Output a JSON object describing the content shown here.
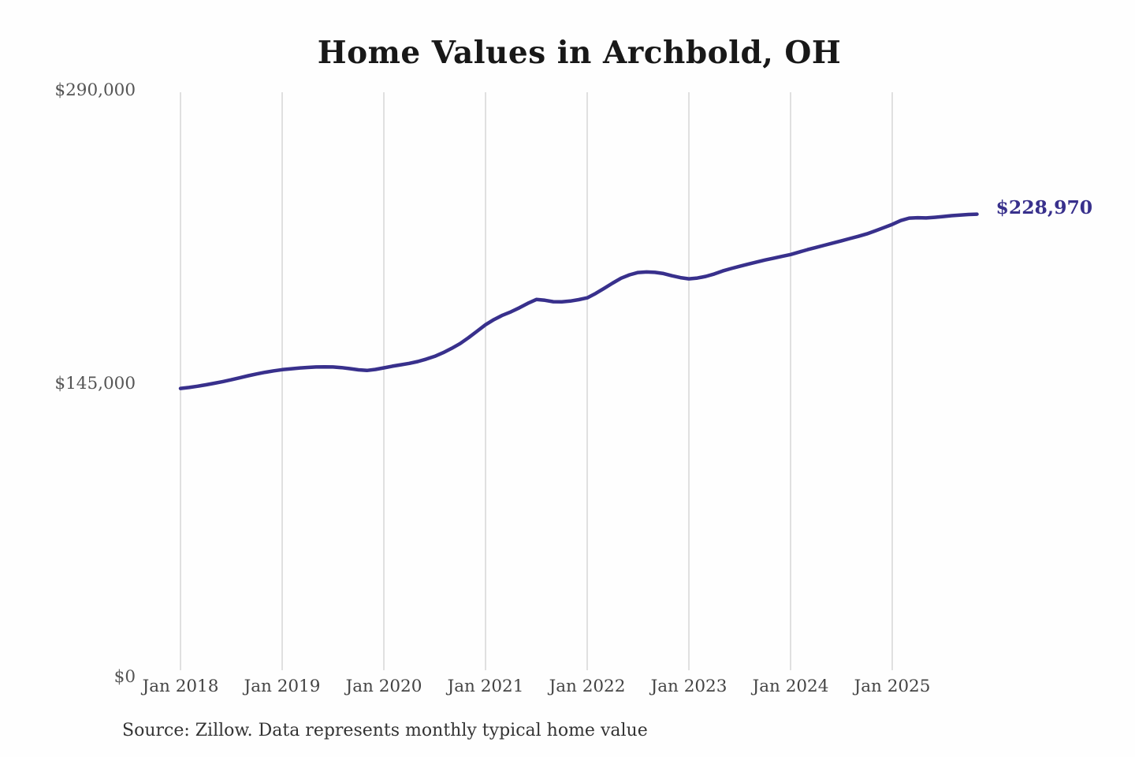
{
  "page": {
    "background": "#ffffff"
  },
  "chart_data": {
    "type": "line",
    "title": "Home Values in Archbold, OH",
    "source_note": "Source: Zillow. Data represents monthly typical home value",
    "end_label": "$228,970",
    "current_value": 228970,
    "line_color": "#38308c",
    "grid_color": "#cccccc",
    "title_color": "#181818",
    "axis_label_color": "#444444",
    "ylim": [
      0,
      290000
    ],
    "legend": "none",
    "grid": "vertical-yearly-only",
    "y_ticks": [
      {
        "label": "$0",
        "value": 0
      },
      {
        "label": "$145,000",
        "value": 145000
      },
      {
        "label": "$290,000",
        "value": 290000
      }
    ],
    "x_ticks": [
      "Jan 2018",
      "Jan 2019",
      "Jan 2020",
      "Jan 2021",
      "Jan 2022",
      "Jan 2023",
      "Jan 2024",
      "Jan 2025"
    ],
    "x": [
      "2018-01",
      "2018-02",
      "2018-03",
      "2018-04",
      "2018-05",
      "2018-06",
      "2018-07",
      "2018-08",
      "2018-09",
      "2018-10",
      "2018-11",
      "2018-12",
      "2019-01",
      "2019-02",
      "2019-03",
      "2019-04",
      "2019-05",
      "2019-06",
      "2019-07",
      "2019-08",
      "2019-09",
      "2019-10",
      "2019-11",
      "2019-12",
      "2020-01",
      "2020-02",
      "2020-03",
      "2020-04",
      "2020-05",
      "2020-06",
      "2020-07",
      "2020-08",
      "2020-09",
      "2020-10",
      "2020-11",
      "2020-12",
      "2021-01",
      "2021-02",
      "2021-03",
      "2021-04",
      "2021-05",
      "2021-06",
      "2021-07",
      "2021-08",
      "2021-09",
      "2021-10",
      "2021-11",
      "2021-12",
      "2022-01",
      "2022-02",
      "2022-03",
      "2022-04",
      "2022-05",
      "2022-06",
      "2022-07",
      "2022-08",
      "2022-09",
      "2022-10",
      "2022-11",
      "2022-12",
      "2023-01",
      "2023-02",
      "2023-03",
      "2023-04",
      "2023-05",
      "2023-06",
      "2023-07",
      "2023-08",
      "2023-09",
      "2023-10",
      "2023-11",
      "2023-12",
      "2024-01",
      "2024-02",
      "2024-03",
      "2024-04",
      "2024-05",
      "2024-06",
      "2024-07",
      "2024-08",
      "2024-09",
      "2024-10",
      "2024-11",
      "2024-12",
      "2025-01",
      "2025-02",
      "2025-03",
      "2025-04",
      "2025-05",
      "2025-06",
      "2025-07",
      "2025-08",
      "2025-09",
      "2025-10",
      "2025-11"
    ],
    "values": [
      142800,
      143300,
      143900,
      144600,
      145400,
      146200,
      147100,
      148100,
      149100,
      150000,
      150800,
      151500,
      152100,
      152500,
      152900,
      153200,
      153400,
      153500,
      153400,
      153100,
      152600,
      152000,
      151700,
      152200,
      153000,
      153800,
      154500,
      155200,
      156100,
      157300,
      158700,
      160500,
      162600,
      165000,
      167900,
      171100,
      174300,
      176900,
      179000,
      180700,
      182700,
      184900,
      186800,
      186400,
      185700,
      185600,
      186000,
      186700,
      187600,
      189800,
      192300,
      194900,
      197300,
      199000,
      200100,
      200400,
      200200,
      199600,
      198500,
      197600,
      197000,
      197400,
      198200,
      199400,
      200900,
      202100,
      203200,
      204300,
      205300,
      206300,
      207200,
      208100,
      209000,
      210200,
      211400,
      212500,
      213600,
      214700,
      215800,
      216900,
      218000,
      219200,
      220700,
      222300,
      223900,
      225800,
      227000,
      227200,
      227100,
      227400,
      227800,
      228200,
      228500,
      228800,
      228970
    ]
  }
}
